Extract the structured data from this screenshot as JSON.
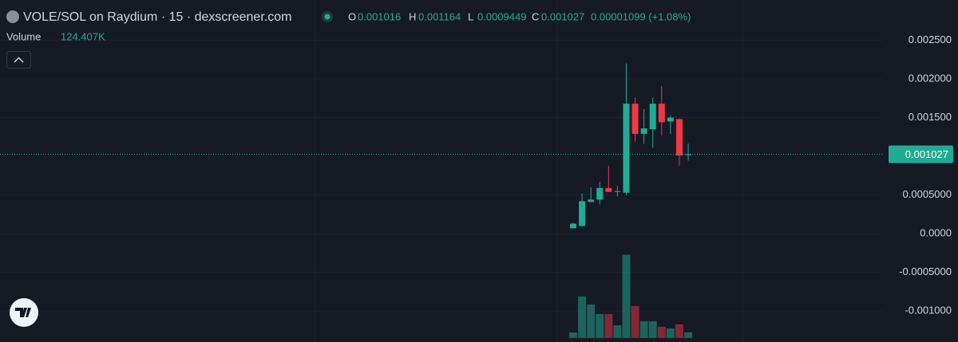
{
  "header": {
    "title": "VOLE/SOL on Raydium · 15 · dexscreener.com",
    "open_label": "O",
    "high_label": "H",
    "low_label": "L",
    "close_label": "C",
    "change": "0.00001099 (+1.08%)",
    "volume_title": "Volume"
  },
  "chart_data": {
    "type": "candlestick",
    "open": [
      7e-05,
      0.0001,
      0.00041,
      0.00044,
      0.00059,
      0.00054,
      0.00053,
      0.00168,
      0.00129,
      0.00135,
      0.00168,
      0.00145,
      0.00148,
      0.001016
    ],
    "high": [
      0.00014,
      0.00052,
      0.0006,
      0.00067,
      0.00088,
      0.00062,
      0.0022,
      0.00176,
      0.00161,
      0.00176,
      0.00191,
      0.00153,
      0.00149,
      0.001164
    ],
    "low": [
      7e-05,
      9e-05,
      0.00041,
      0.00038,
      0.00054,
      0.00048,
      0.0005,
      0.00119,
      0.00116,
      0.00111,
      0.00127,
      0.00129,
      0.00088,
      0.0009449
    ],
    "close": [
      0.00013,
      0.00042,
      0.00044,
      0.00059,
      0.00054,
      0.00055,
      0.00168,
      0.00129,
      0.00136,
      0.00168,
      0.00144,
      0.0015,
      0.00101,
      0.001027
    ],
    "volume": [
      124000,
      924000,
      746000,
      533000,
      533000,
      284000,
      1848000,
      711000,
      373000,
      373000,
      249000,
      213000,
      302000,
      124407
    ],
    "volume_label": "124.407K",
    "vlim": [
      0,
      2000000
    ],
    "up_color": "#22ab94",
    "down_color": "#f23645",
    "ylim": [
      -0.0014,
      0.00302
    ],
    "yticks": [
      {
        "value": 0.0025,
        "label": "0.002500"
      },
      {
        "value": 0.002,
        "label": "0.002000"
      },
      {
        "value": 0.0015,
        "label": "0.001500"
      },
      {
        "value": 0.0005,
        "label": "0.0005000"
      },
      {
        "value": 0,
        "label": "0.0000"
      },
      {
        "value": -0.0005,
        "label": "-0.0005000"
      },
      {
        "value": -0.001,
        "label": "-0.001000"
      }
    ],
    "grid": true
  }
}
